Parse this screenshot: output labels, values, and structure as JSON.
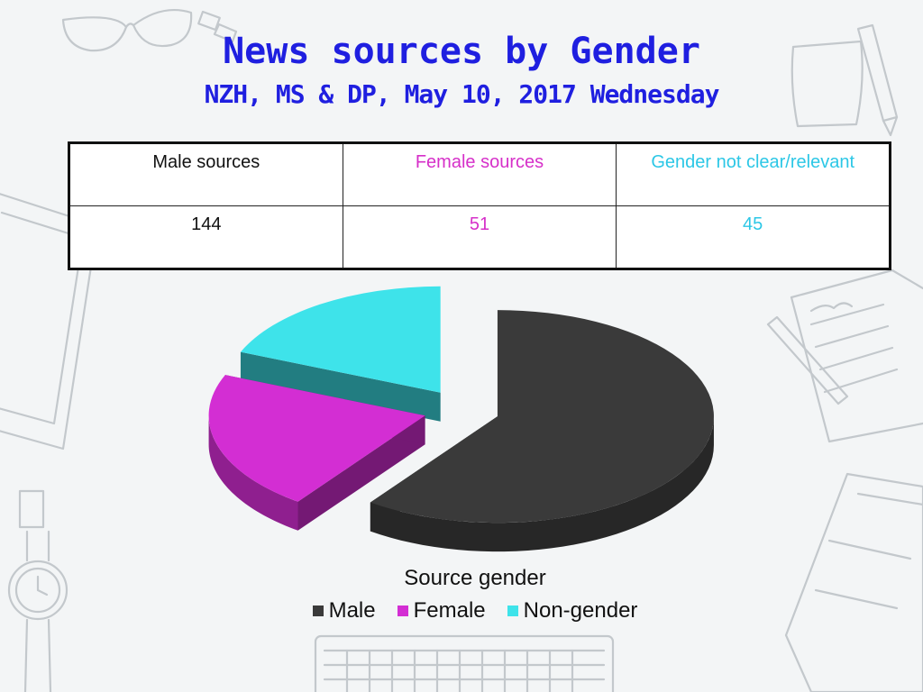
{
  "header": {
    "title": "News sources by Gender",
    "subtitle": "NZH, MS & DP, May 10, 2017 Wednesday"
  },
  "table": {
    "headers": [
      "Male sources",
      "Female sources",
      "Gender not clear/relevant"
    ],
    "values": [
      "144",
      "51",
      "45"
    ]
  },
  "colors": {
    "male": "#3a3a3a",
    "female": "#d32ed3",
    "non_gender": "#3ee3ea"
  },
  "chart_data": {
    "type": "pie",
    "title": "",
    "legend_title": "Source gender",
    "legend_position": "bottom",
    "categories": [
      "Male",
      "Female",
      "Non-gender"
    ],
    "values": [
      144,
      51,
      45
    ]
  }
}
